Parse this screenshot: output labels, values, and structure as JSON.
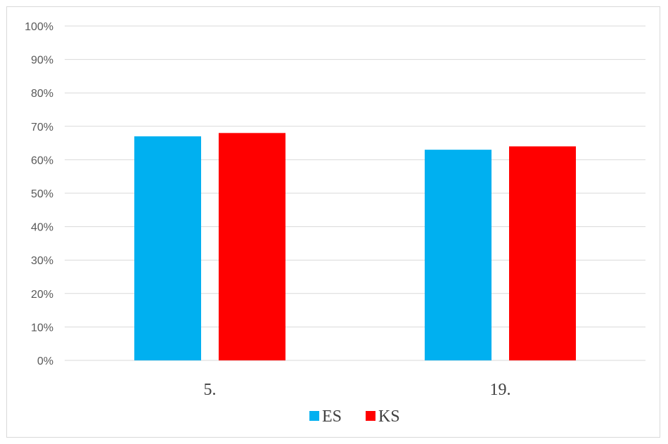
{
  "chart_data": {
    "type": "bar",
    "categories": [
      "5.",
      "19."
    ],
    "series": [
      {
        "name": "ES",
        "color": "#00B0F0",
        "values": [
          67,
          63
        ]
      },
      {
        "name": "KS",
        "color": "#FF0000",
        "values": [
          68,
          64
        ]
      }
    ],
    "y_ticks": [
      "0%",
      "10%",
      "20%",
      "30%",
      "40%",
      "50%",
      "60%",
      "70%",
      "80%",
      "90%",
      "100%"
    ],
    "ylim": [
      0,
      100
    ],
    "grid": true,
    "gridline_color": "#d9d9d9",
    "legend_position": "bottom"
  }
}
